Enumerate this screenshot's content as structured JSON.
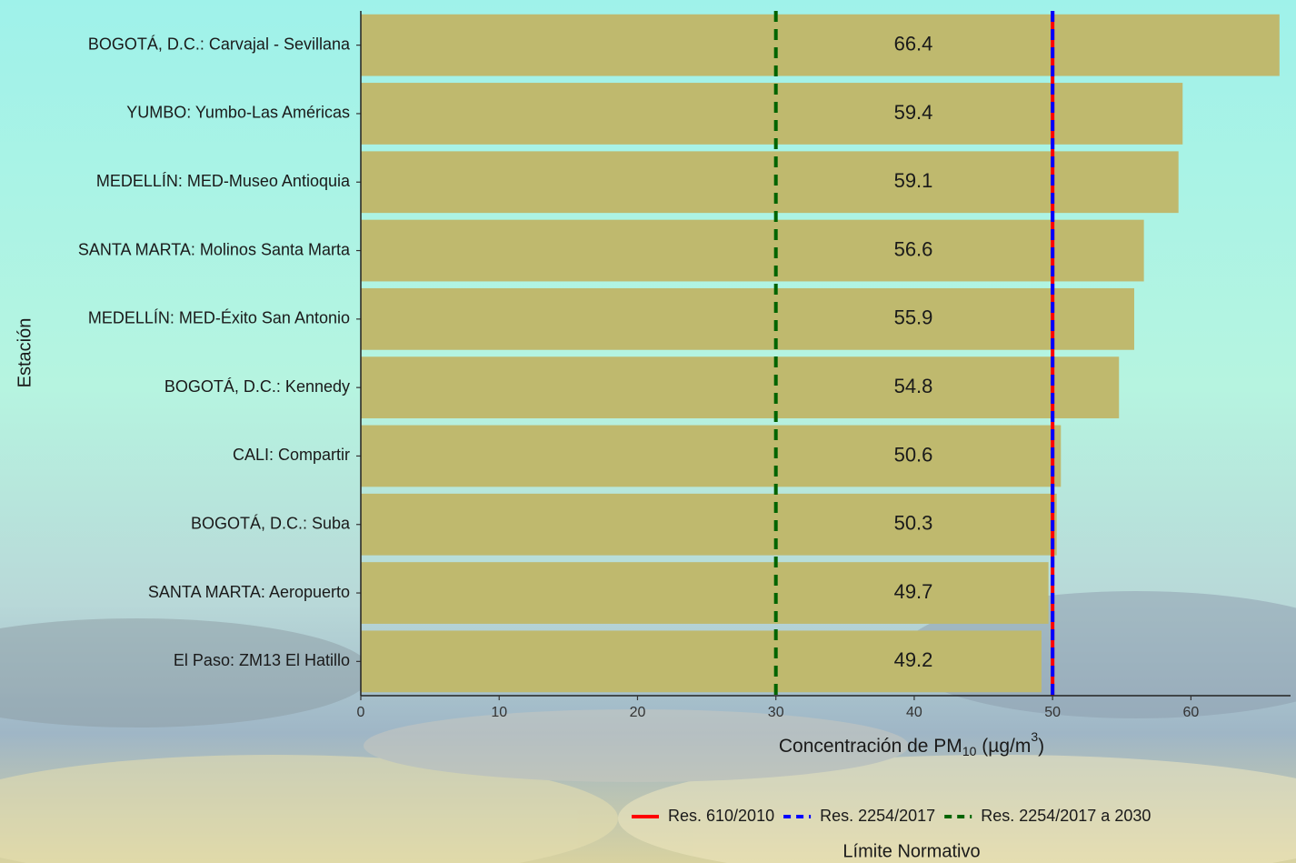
{
  "chart_data": {
    "type": "hbar",
    "categories": [
      "BOGOTÁ, D.C.: Carvajal - Sevillana",
      "YUMBO: Yumbo-Las Américas",
      "MEDELLÍN: MED-Museo Antioquia",
      "SANTA MARTA: Molinos Santa Marta",
      "MEDELLÍN: MED-Éxito San Antonio",
      "BOGOTÁ, D.C.: Kennedy",
      "CALI: Compartir",
      "BOGOTÁ, D.C.: Suba",
      "SANTA MARTA: Aeropuerto",
      "El Paso: ZM13 El Hatillo"
    ],
    "values": [
      66.4,
      59.4,
      59.1,
      56.6,
      55.9,
      54.8,
      50.6,
      50.3,
      49.7,
      49.2
    ],
    "color": "#bfb96e",
    "xlim": [
      0,
      67.2
    ],
    "xticks": [
      0,
      10,
      20,
      30,
      40,
      50,
      60
    ],
    "ylabel": "Estación",
    "xlabel_parts": [
      "Concentración de PM",
      "10",
      " (µg/m",
      "3",
      ")"
    ],
    "reference_lines": [
      {
        "name": "Res. 610/2010",
        "value": 50,
        "color": "#ff0000",
        "dash": false
      },
      {
        "name": "Res. 2254/2017",
        "value": 50,
        "color": "#0000ff",
        "dash": true
      },
      {
        "name": "Res. 2254/2017 a 2030",
        "value": 30,
        "color": "#006400",
        "dash": true
      }
    ],
    "legend_title": "Límite Normativo"
  }
}
